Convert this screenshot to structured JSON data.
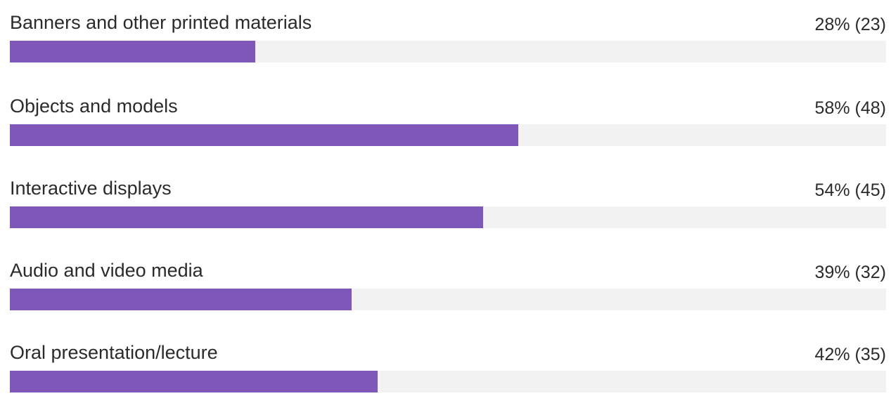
{
  "chart_data": {
    "type": "bar",
    "orientation": "horizontal",
    "categories": [
      "Banners and other printed materials",
      "Objects and models",
      "Interactive displays",
      "Audio and video media",
      "Oral presentation/lecture"
    ],
    "values": [
      28,
      58,
      54,
      39,
      42
    ],
    "counts": [
      23,
      48,
      45,
      32,
      35
    ],
    "value_labels": [
      "28% (23)",
      "58% (48)",
      "54% (45)",
      "39% (32)",
      "42% (35)"
    ],
    "xlim": [
      0,
      100
    ],
    "unit": "%",
    "grid": false,
    "legend": "none",
    "colors": {
      "bar": "#7e57b9",
      "track": "#f2f2f2",
      "text": "#2b2b2b"
    }
  }
}
